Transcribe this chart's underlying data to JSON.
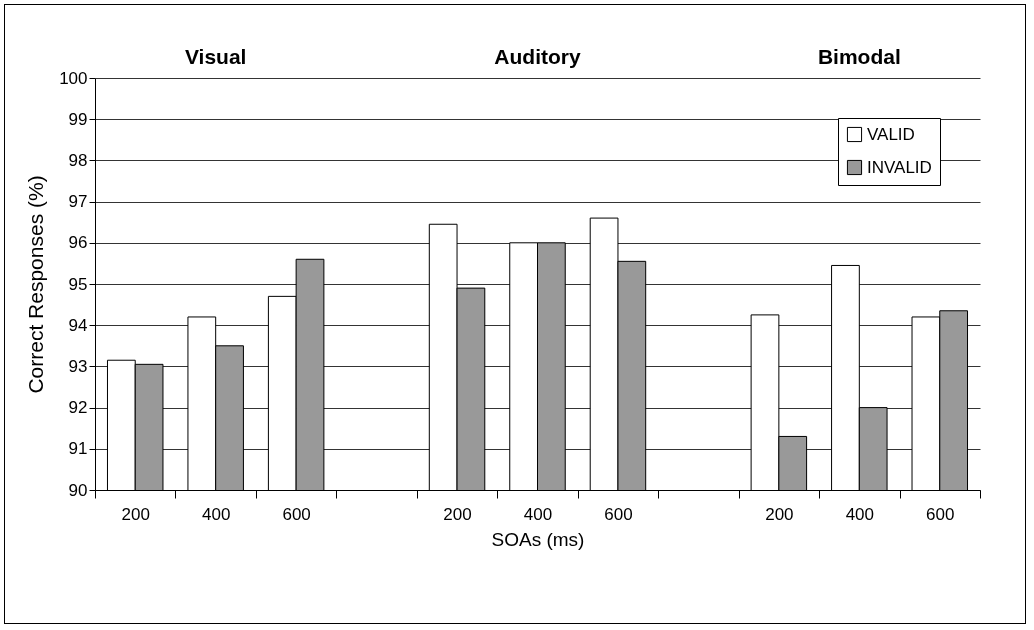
{
  "chart_data": {
    "type": "bar",
    "xlabel": "SOAs (ms)",
    "ylabel": "Correct Responses (%)",
    "categories": [
      "200",
      "400",
      "600",
      null,
      "200",
      "400",
      "600",
      null,
      "200",
      "400",
      "600"
    ],
    "annotations": [
      "Visual",
      "Auditory",
      "Bimodal"
    ],
    "series": [
      {
        "name": "VALID",
        "color": "#ffffff",
        "values": [
          93.15,
          94.2,
          94.7,
          null,
          96.45,
          96.0,
          96.6,
          null,
          94.25,
          95.45,
          94.2
        ]
      },
      {
        "name": "INVALID",
        "color": "#999999",
        "values": [
          93.05,
          93.5,
          95.6,
          null,
          94.9,
          96.0,
          95.55,
          null,
          91.3,
          92.0,
          94.35
        ]
      }
    ],
    "ylim": [
      90,
      100
    ],
    "yticks": [
      90,
      91,
      92,
      93,
      94,
      95,
      96,
      97,
      98,
      99,
      100
    ],
    "grid": "y",
    "legend": "top right"
  }
}
